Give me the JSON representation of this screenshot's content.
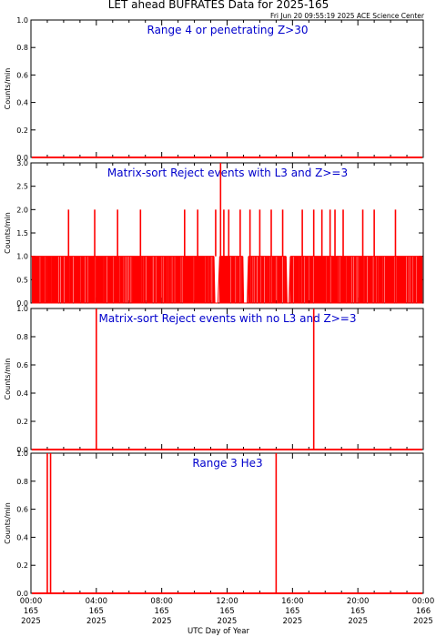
{
  "title": "LET ahead BUFRATES Data for 2025-165",
  "timestamp": "Fri Jun 20 09:55:19 2025 ACE Science Center",
  "x_axis_title": "UTC Day of Year",
  "colors": {
    "data": "#ff0000",
    "title": "#0000cc",
    "axes": "#000000"
  },
  "chart_data": [
    {
      "type": "line",
      "title": "Range 4 or  penetrating Z>30",
      "ylabel": "Counts/min",
      "ylim": [
        0,
        1.0
      ],
      "yticks": [
        "0.0",
        "0.2",
        "0.4",
        "0.6",
        "0.8",
        "1.0"
      ],
      "xlim": [
        0,
        24
      ],
      "baseline": 0,
      "spikes": []
    },
    {
      "type": "line",
      "title": "Matrix-sort Reject events with L3 and Z>=3",
      "ylabel": "Counts/min",
      "ylim": [
        0,
        3.0
      ],
      "yticks": [
        "0.0",
        "0.5",
        "1.0",
        "1.5",
        "2.0",
        "2.5",
        "3.0"
      ],
      "xlim": [
        0,
        24
      ],
      "baseline": 1,
      "dense_until": 23.9,
      "quiet_intervals": [
        [
          11.2,
          11.5
        ],
        [
          13.0,
          13.3
        ],
        [
          15.6,
          15.8
        ]
      ],
      "spikes": [
        {
          "x": 2.3,
          "y": 2
        },
        {
          "x": 3.9,
          "y": 2
        },
        {
          "x": 5.3,
          "y": 2
        },
        {
          "x": 6.7,
          "y": 2
        },
        {
          "x": 9.4,
          "y": 2
        },
        {
          "x": 10.2,
          "y": 2
        },
        {
          "x": 11.3,
          "y": 2
        },
        {
          "x": 11.6,
          "y": 3
        },
        {
          "x": 11.8,
          "y": 2
        },
        {
          "x": 12.1,
          "y": 2
        },
        {
          "x": 12.8,
          "y": 2
        },
        {
          "x": 13.4,
          "y": 2
        },
        {
          "x": 14.0,
          "y": 2
        },
        {
          "x": 14.7,
          "y": 2
        },
        {
          "x": 15.4,
          "y": 2
        },
        {
          "x": 16.6,
          "y": 2
        },
        {
          "x": 17.3,
          "y": 2
        },
        {
          "x": 17.8,
          "y": 2
        },
        {
          "x": 18.3,
          "y": 2
        },
        {
          "x": 18.6,
          "y": 2
        },
        {
          "x": 19.1,
          "y": 2
        },
        {
          "x": 20.3,
          "y": 2
        },
        {
          "x": 21.0,
          "y": 2
        },
        {
          "x": 22.3,
          "y": 2
        }
      ]
    },
    {
      "type": "line",
      "title": "Matrix-sort Reject events with no L3 and Z>=3",
      "ylabel": "Counts/min",
      "ylim": [
        0,
        1.0
      ],
      "yticks": [
        "0.0",
        "0.2",
        "0.4",
        "0.6",
        "0.8",
        "1.0"
      ],
      "xlim": [
        0,
        24
      ],
      "baseline": 0,
      "spikes": [
        {
          "x": 4.0,
          "y": 1
        },
        {
          "x": 17.3,
          "y": 1
        }
      ]
    },
    {
      "type": "line",
      "title": "Range 3 He3",
      "ylabel": "Counts/min",
      "ylim": [
        0,
        1.0
      ],
      "yticks": [
        "0.0",
        "0.2",
        "0.4",
        "0.6",
        "0.8",
        "1.0"
      ],
      "xlim": [
        0,
        24
      ],
      "baseline": 0,
      "spikes": [
        {
          "x": 1.0,
          "y": 1
        },
        {
          "x": 1.2,
          "y": 1
        },
        {
          "x": 15.0,
          "y": 1
        }
      ]
    }
  ],
  "x_ticks": [
    {
      "time": "00:00",
      "day": "165",
      "year": "2025"
    },
    {
      "time": "04:00",
      "day": "165",
      "year": "2025"
    },
    {
      "time": "08:00",
      "day": "165",
      "year": "2025"
    },
    {
      "time": "12:00",
      "day": "165",
      "year": "2025"
    },
    {
      "time": "16:00",
      "day": "165",
      "year": "2025"
    },
    {
      "time": "20:00",
      "day": "165",
      "year": "2025"
    },
    {
      "time": "00:00",
      "day": "166",
      "year": "2025"
    }
  ]
}
